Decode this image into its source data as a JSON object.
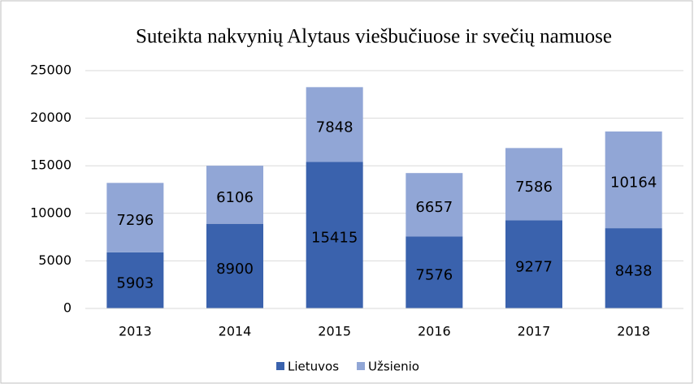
{
  "chart_data": {
    "type": "stacked_bar",
    "title": "Suteikta nakvynių Alytaus viešbučiuose ir svečių namuose",
    "categories": [
      "2013",
      "2014",
      "2015",
      "2016",
      "2017",
      "2018"
    ],
    "series": [
      {
        "name": "Lietuvos",
        "color": "#3a62ad",
        "values": [
          5903,
          8900,
          15415,
          7576,
          9277,
          8438
        ]
      },
      {
        "name": "Užsienio",
        "color": "#91a6d6",
        "values": [
          7296,
          6106,
          7848,
          6657,
          7586,
          10164
        ]
      }
    ],
    "ylim": [
      0,
      25000
    ],
    "yticks": [
      0,
      5000,
      10000,
      15000,
      20000,
      25000
    ],
    "grid": true,
    "legend": "bottom"
  }
}
